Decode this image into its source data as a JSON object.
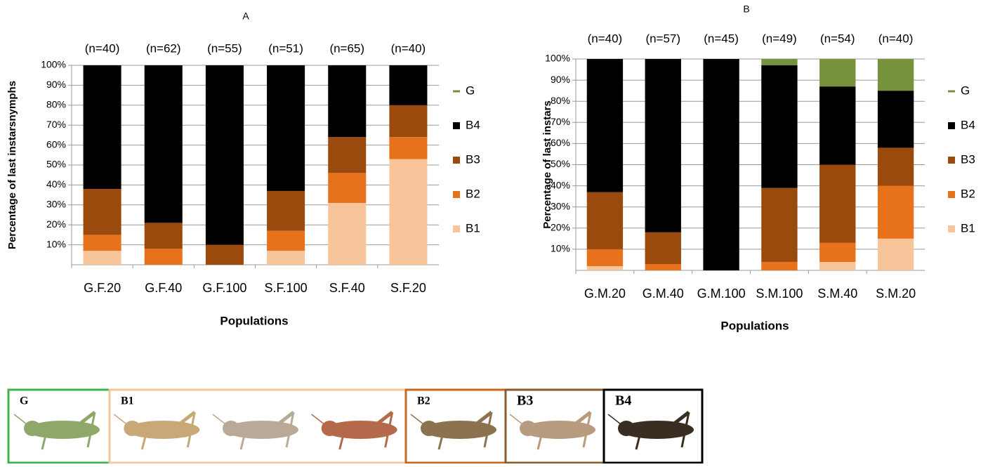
{
  "chart_data": [
    {
      "type": "stacked_bar",
      "title": "A",
      "x_label": "Populations",
      "y_label": "Percentage of last instarsnymphs",
      "categories": [
        "G.F.20",
        "G.F.40",
        "G.F.100",
        "S.F.100",
        "S.F.40",
        "S.F.20"
      ],
      "n_labels": [
        "(n=40)",
        "(n=62)",
        "(n=55)",
        "(n=51)",
        "(n=65)",
        "(n=40)"
      ],
      "series": [
        {
          "name": "B1",
          "color": "#f8c49a",
          "values": [
            7,
            0,
            0,
            7,
            31,
            53
          ]
        },
        {
          "name": "B2",
          "color": "#e8711c",
          "values": [
            8,
            8,
            0,
            10,
            15,
            11
          ]
        },
        {
          "name": "B3",
          "color": "#9a4a0c",
          "values": [
            23,
            13,
            10,
            20,
            18,
            16
          ]
        },
        {
          "name": "B4",
          "color": "#000000",
          "values": [
            62,
            79,
            90,
            63,
            36,
            20
          ]
        },
        {
          "name": "G",
          "color": "#76923c",
          "values": [
            0,
            0,
            0,
            0,
            0,
            0
          ]
        }
      ],
      "ylim": [
        0,
        100
      ],
      "yticks": [
        {
          "value": 10,
          "label": "10%"
        },
        {
          "value": 20,
          "label": "20%"
        },
        {
          "value": 30,
          "label": "30%"
        },
        {
          "value": 40,
          "label": "40%"
        },
        {
          "value": 50,
          "label": "50%"
        },
        {
          "value": 60,
          "label": "60%"
        },
        {
          "value": 70,
          "label": "70%"
        },
        {
          "value": 80,
          "label": "80%"
        },
        {
          "value": 90,
          "label": "90%"
        },
        {
          "value": 100,
          "label": "100%"
        }
      ],
      "grid": true
    },
    {
      "type": "stacked_bar",
      "title": "B",
      "x_label": "Populations",
      "y_label": "Percentage of last instars",
      "categories": [
        "G.M.20",
        "G.M.40",
        "G.M.100",
        "S.M.100",
        "S.M.40",
        "S.M.20"
      ],
      "n_labels": [
        "(n=40)",
        "(n=57)",
        "(n=45)",
        "(n=49)",
        "(n=54)",
        "(n=40)"
      ],
      "series": [
        {
          "name": "B1",
          "color": "#f8c49a",
          "values": [
            2,
            0,
            0,
            0,
            4,
            15
          ]
        },
        {
          "name": "B2",
          "color": "#e8711c",
          "values": [
            8,
            3,
            0,
            4,
            9,
            25
          ]
        },
        {
          "name": "B3",
          "color": "#9a4a0c",
          "values": [
            27,
            15,
            0,
            35,
            37,
            18
          ]
        },
        {
          "name": "B4",
          "color": "#000000",
          "values": [
            63,
            82,
            100,
            58,
            37,
            27
          ]
        },
        {
          "name": "G",
          "color": "#76923c",
          "values": [
            0,
            0,
            0,
            3,
            13,
            15
          ]
        }
      ],
      "ylim": [
        0,
        100
      ],
      "yticks": [
        {
          "value": 10,
          "label": "10%"
        },
        {
          "value": 20,
          "label": "20%"
        },
        {
          "value": 30,
          "label": "30%"
        },
        {
          "value": 40,
          "label": "40%"
        },
        {
          "value": 50,
          "label": "50%"
        },
        {
          "value": 60,
          "label": "60%"
        },
        {
          "value": 70,
          "label": "70%"
        },
        {
          "value": 80,
          "label": "80%"
        },
        {
          "value": 90,
          "label": "90%"
        },
        {
          "value": 100,
          "label": "100%"
        }
      ],
      "grid": true
    }
  ],
  "specimens": [
    "G",
    "B1",
    "B2",
    "B3",
    "B4"
  ]
}
